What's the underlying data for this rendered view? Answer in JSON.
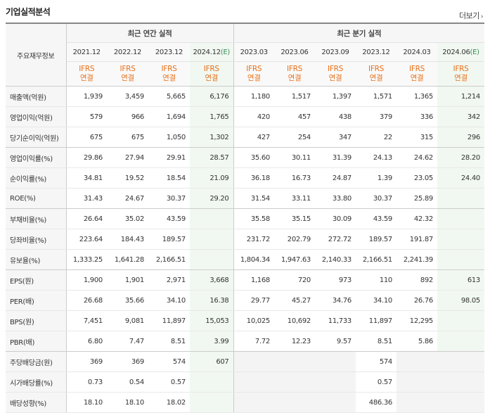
{
  "header": {
    "title": "기업실적분석",
    "more": "더보기"
  },
  "table": {
    "row_header": "주요재무정보",
    "groups": [
      "최근 연간 실적",
      "최근 분기 실적"
    ],
    "periods": [
      {
        "label": "2021.12",
        "est": false
      },
      {
        "label": "2022.12",
        "est": false
      },
      {
        "label": "2023.12",
        "est": false
      },
      {
        "label": "2024.12",
        "est": true
      },
      {
        "label": "2023.03",
        "est": false
      },
      {
        "label": "2023.06",
        "est": false
      },
      {
        "label": "2023.09",
        "est": false
      },
      {
        "label": "2023.12",
        "est": false
      },
      {
        "label": "2024.03",
        "est": false
      },
      {
        "label": "2024.06",
        "est": true
      }
    ],
    "est_mark": "(E)",
    "ifrs_line1": "IFRS",
    "ifrs_line2": "연결",
    "rows": [
      {
        "label": "매출액(억원)",
        "values": [
          "1,939",
          "3,459",
          "5,665",
          "6,176",
          "1,180",
          "1,517",
          "1,397",
          "1,571",
          "1,365",
          "1,214"
        ]
      },
      {
        "label": "영업이익(억원)",
        "values": [
          "579",
          "966",
          "1,694",
          "1,765",
          "420",
          "457",
          "438",
          "379",
          "336",
          "342"
        ]
      },
      {
        "label": "당기순이익(억원)",
        "values": [
          "675",
          "675",
          "1,050",
          "1,302",
          "427",
          "254",
          "347",
          "22",
          "315",
          "296"
        ]
      },
      {
        "label": "영업이익률(%)",
        "values": [
          "29.86",
          "27.94",
          "29.91",
          "28.57",
          "35.60",
          "30.11",
          "31.39",
          "24.13",
          "24.62",
          "28.20"
        ]
      },
      {
        "label": "순이익률(%)",
        "values": [
          "34.81",
          "19.52",
          "18.54",
          "21.09",
          "36.18",
          "16.73",
          "24.87",
          "1.39",
          "23.05",
          "24.40"
        ]
      },
      {
        "label": "ROE(%)",
        "values": [
          "31.43",
          "24.67",
          "30.37",
          "29.20",
          "31.54",
          "33.11",
          "33.80",
          "30.37",
          "25.89",
          ""
        ]
      },
      {
        "label": "부채비율(%)",
        "values": [
          "26.64",
          "35.02",
          "43.59",
          "",
          "35.58",
          "35.15",
          "30.09",
          "43.59",
          "42.32",
          ""
        ]
      },
      {
        "label": "당좌비율(%)",
        "values": [
          "223.64",
          "184.43",
          "189.57",
          "",
          "231.72",
          "202.79",
          "272.72",
          "189.57",
          "191.87",
          ""
        ]
      },
      {
        "label": "유보율(%)",
        "values": [
          "1,333.25",
          "1,641.28",
          "2,166.51",
          "",
          "1,804.34",
          "1,947.63",
          "2,140.33",
          "2,166.51",
          "2,241.39",
          ""
        ]
      },
      {
        "label": "EPS(원)",
        "values": [
          "1,900",
          "1,901",
          "2,971",
          "3,668",
          "1,168",
          "720",
          "973",
          "110",
          "892",
          "613"
        ]
      },
      {
        "label": "PER(배)",
        "values": [
          "26.68",
          "35.66",
          "34.10",
          "16.38",
          "29.77",
          "45.27",
          "34.76",
          "34.10",
          "26.76",
          "98.05"
        ]
      },
      {
        "label": "BPS(원)",
        "values": [
          "7,451",
          "9,081",
          "11,897",
          "15,053",
          "10,025",
          "10,692",
          "11,733",
          "11,897",
          "12,295",
          ""
        ]
      },
      {
        "label": "PBR(배)",
        "values": [
          "6.80",
          "7.47",
          "8.51",
          "3.99",
          "7.72",
          "12.23",
          "9.57",
          "8.51",
          "5.86",
          ""
        ]
      },
      {
        "label": "주당배당금(원)",
        "values": [
          "369",
          "369",
          "574",
          "607",
          "",
          "",
          "",
          "574",
          "",
          ""
        ]
      },
      {
        "label": "시가배당률(%)",
        "values": [
          "0.73",
          "0.54",
          "0.57",
          "",
          "",
          "",
          "",
          "0.57",
          "",
          ""
        ]
      },
      {
        "label": "배당성향(%)",
        "values": [
          "18.10",
          "18.10",
          "18.02",
          "",
          "",
          "",
          "",
          "486.36",
          "",
          ""
        ]
      }
    ]
  }
}
